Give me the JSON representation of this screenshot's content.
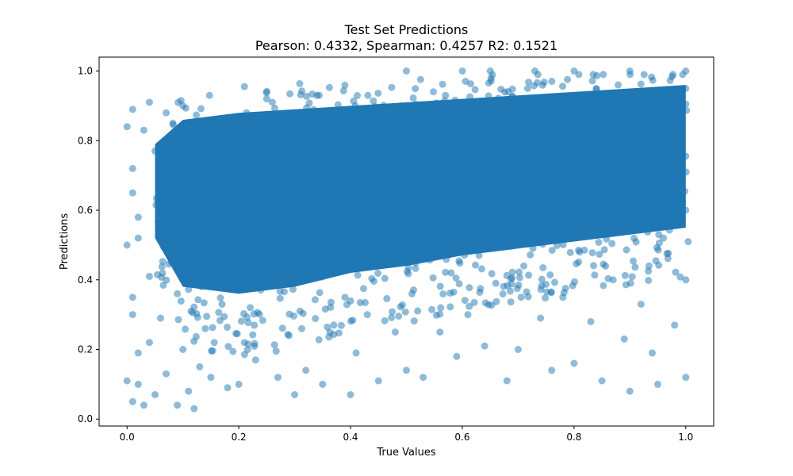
{
  "chart_data": {
    "type": "scatter",
    "title": "Test Set Predictions",
    "subtitle": "Pearson: 0.4332, Spearman: 0.4257 R2: 0.1521",
    "xlabel": "True Values",
    "ylabel": "Predictions",
    "xlim": [
      -0.05,
      1.05
    ],
    "ylim": [
      -0.02,
      1.04
    ],
    "xticks": [
      0.0,
      0.2,
      0.4,
      0.6,
      0.8,
      1.0
    ],
    "xtick_labels": [
      "0.0",
      "0.2",
      "0.4",
      "0.6",
      "0.8",
      "1.0"
    ],
    "yticks": [
      0.0,
      0.2,
      0.4,
      0.6,
      0.8,
      1.0
    ],
    "ytick_labels": [
      "0.0",
      "0.2",
      "0.4",
      "0.6",
      "0.8",
      "1.0"
    ],
    "grid": false,
    "marker_color": "#1f77b4",
    "marker_alpha": 0.5,
    "series": [
      {
        "x": [
          0.0,
          0.0,
          0.0,
          0.01,
          0.01,
          0.01,
          0.01,
          0.01,
          0.01,
          0.02,
          0.02,
          0.02,
          0.02,
          0.03,
          0.03,
          0.04,
          0.04,
          0.04,
          0.05,
          0.05,
          0.06,
          0.06,
          0.07,
          0.07,
          0.08,
          0.08,
          0.09,
          0.09,
          0.1,
          0.1,
          0.1,
          0.11,
          0.12,
          0.12,
          0.13,
          0.13,
          0.14,
          0.15,
          0.16,
          0.17,
          0.18,
          0.19,
          0.2,
          0.2,
          0.21,
          0.22,
          0.23,
          0.24,
          0.25,
          0.26,
          0.27,
          0.28,
          0.29,
          0.3,
          0.3,
          0.31,
          0.32,
          0.33,
          0.34,
          0.35,
          0.36,
          0.37,
          0.38,
          0.39,
          0.4,
          0.4,
          0.41,
          0.42,
          0.43,
          0.44,
          0.45,
          0.46,
          0.47,
          0.48,
          0.49,
          0.5,
          0.5,
          0.5,
          0.51,
          0.52,
          0.53,
          0.54,
          0.55,
          0.56,
          0.57,
          0.58,
          0.59,
          0.6,
          0.6,
          0.61,
          0.62,
          0.63,
          0.64,
          0.65,
          0.65,
          0.66,
          0.67,
          0.68,
          0.69,
          0.7,
          0.7,
          0.71,
          0.72,
          0.73,
          0.73,
          0.74,
          0.75,
          0.76,
          0.77,
          0.78,
          0.79,
          0.8,
          0.8,
          0.81,
          0.82,
          0.83,
          0.84,
          0.85,
          0.86,
          0.87,
          0.88,
          0.89,
          0.9,
          0.9,
          0.91,
          0.92,
          0.93,
          0.94,
          0.95,
          0.96,
          0.97,
          0.98,
          0.99,
          1.0,
          1.0,
          1.0,
          1.0,
          1.0
        ],
        "y": [
          0.11,
          0.5,
          0.84,
          0.05,
          0.3,
          0.65,
          0.72,
          0.89,
          0.35,
          0.1,
          0.19,
          0.52,
          0.58,
          0.04,
          0.83,
          0.22,
          0.41,
          0.91,
          0.07,
          0.77,
          0.29,
          0.6,
          0.13,
          0.88,
          0.45,
          0.67,
          0.04,
          0.36,
          0.2,
          0.55,
          0.9,
          0.08,
          0.03,
          0.7,
          0.15,
          0.47,
          0.26,
          0.12,
          0.64,
          0.33,
          0.09,
          0.79,
          0.1,
          0.48,
          0.22,
          0.86,
          0.17,
          0.58,
          0.39,
          0.91,
          0.12,
          0.68,
          0.24,
          0.07,
          0.5,
          0.82,
          0.14,
          0.44,
          0.93,
          0.1,
          0.61,
          0.27,
          0.77,
          0.35,
          0.07,
          0.55,
          0.19,
          0.88,
          0.3,
          0.72,
          0.11,
          0.46,
          0.64,
          0.25,
          0.9,
          0.14,
          0.58,
          1.0,
          0.36,
          0.8,
          0.12,
          0.49,
          0.68,
          0.25,
          0.93,
          0.42,
          0.18,
          0.62,
          1.0,
          0.3,
          0.85,
          0.47,
          0.21,
          0.73,
          1.0,
          0.39,
          0.56,
          0.11,
          0.82,
          0.2,
          0.66,
          0.44,
          0.92,
          0.52,
          1.0,
          0.29,
          0.77,
          0.14,
          0.6,
          0.35,
          0.89,
          0.16,
          1.0,
          0.48,
          0.7,
          0.28,
          0.95,
          0.11,
          0.57,
          0.4,
          0.83,
          0.23,
          0.08,
          1.0,
          0.62,
          0.33,
          0.75,
          0.19,
          0.1,
          0.52,
          0.86,
          0.27,
          0.68,
          0.12,
          0.4,
          0.6,
          0.95,
          1.0
        ]
      }
    ],
    "density_fill": {
      "description": "dense overlapping markers forming a solid band",
      "lower": [
        [
          0.05,
          0.52
        ],
        [
          0.1,
          0.38
        ],
        [
          0.2,
          0.36
        ],
        [
          0.3,
          0.38
        ],
        [
          0.4,
          0.42
        ],
        [
          0.5,
          0.44
        ],
        [
          0.6,
          0.47
        ],
        [
          0.7,
          0.49
        ],
        [
          0.8,
          0.51
        ],
        [
          0.9,
          0.53
        ],
        [
          1.0,
          0.55
        ]
      ],
      "upper": [
        [
          0.05,
          0.79
        ],
        [
          0.1,
          0.86
        ],
        [
          0.2,
          0.88
        ],
        [
          0.3,
          0.89
        ],
        [
          0.4,
          0.9
        ],
        [
          0.5,
          0.91
        ],
        [
          0.6,
          0.92
        ],
        [
          0.7,
          0.93
        ],
        [
          0.8,
          0.94
        ],
        [
          0.9,
          0.95
        ],
        [
          1.0,
          0.96
        ]
      ]
    }
  }
}
